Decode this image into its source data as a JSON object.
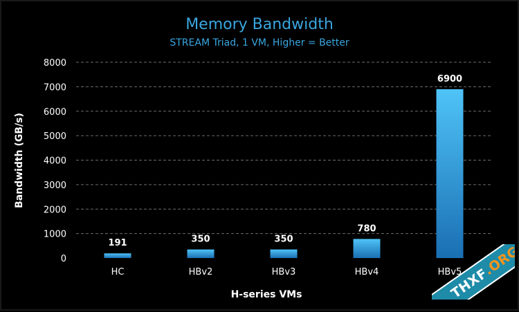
{
  "chart_data": {
    "type": "bar",
    "title": "Memory Bandwidth",
    "subtitle": "STREAM Triad, 1 VM, Higher = Better",
    "xlabel": "H-series VMs",
    "ylabel": "Bandwidth (GB/s)",
    "categories": [
      "HC",
      "HBv2",
      "HBv3",
      "HBv4",
      "HBv5"
    ],
    "values": [
      191,
      350,
      350,
      780,
      6900
    ],
    "data_labels": [
      "191",
      "350",
      "350",
      "780",
      "6900"
    ],
    "ylim": [
      0,
      8000
    ],
    "yticks": [
      0,
      1000,
      2000,
      3000,
      4000,
      5000,
      6000,
      7000,
      8000
    ],
    "grid": true,
    "legend": "none"
  },
  "colors": {
    "background": "#000000",
    "title": "#3aa6e0",
    "subtitle": "#3aa6e0",
    "bar_top": "#4fc3f7",
    "bar_bottom": "#1a6fb3",
    "text": "#ffffff",
    "grid": "#6e6e6e"
  },
  "watermark": {
    "text_main": "THXF",
    "text_suffix": ".ORG"
  }
}
